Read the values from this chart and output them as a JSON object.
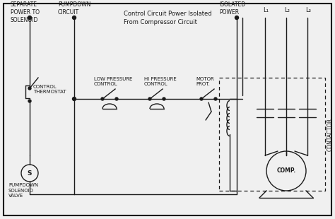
{
  "bg_color": "#f0f0f0",
  "line_color": "#1a1a1a",
  "border_color": "#222222",
  "title_text": "Control Circuit Power Isolated\nFrom Compressor Circuit",
  "labels": {
    "separate_power": "SEPARATE\nPOWER TO\nSOLENOID",
    "pumpdown_circuit": "PUMPDOWN\nCIRCUIT",
    "control_thermostat": "CONTROL\nTHERMOSTAT",
    "pumpdown_solenoid": "PUMPDOWN\nSOLENOID\nVALVE",
    "low_pressure": "LOW PRESSURE\nCONTROL",
    "hi_pressure": "HI PRESSURE\nCONTROL",
    "motor_prot": "MOTOR\nPROT.",
    "isolated_power": "ISOLATED\nPOWER",
    "l1": "L₁",
    "l2": "L₂",
    "l3": "L₃",
    "contactor": "CONTACTOR",
    "comp": "COMP."
  }
}
